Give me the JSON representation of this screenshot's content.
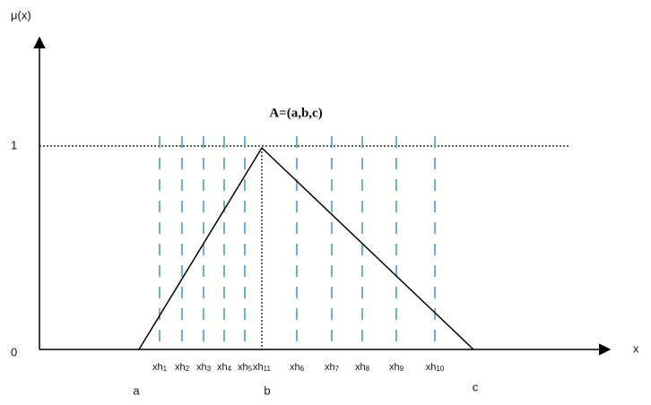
{
  "axes": {
    "y_label": "μ(x)",
    "x_label": "x",
    "y_top": "1",
    "y_origin": "0"
  },
  "title": "A=(a,b,c)",
  "points": {
    "a": "a",
    "b": "b",
    "c": "c"
  },
  "xh_labels": [
    {
      "base": "xh",
      "sub": "1"
    },
    {
      "base": "xh",
      "sub": "2"
    },
    {
      "base": "xh",
      "sub": "3"
    },
    {
      "base": "xh",
      "sub": "4"
    },
    {
      "base": "xh",
      "sub": "5"
    },
    {
      "base": "xh",
      "sub": "11"
    },
    {
      "base": "xh",
      "sub": "6"
    },
    {
      "base": "xh",
      "sub": "7"
    },
    {
      "base": "xh",
      "sub": "8"
    },
    {
      "base": "xh",
      "sub": "9"
    },
    {
      "base": "xh",
      "sub": "10"
    }
  ]
}
